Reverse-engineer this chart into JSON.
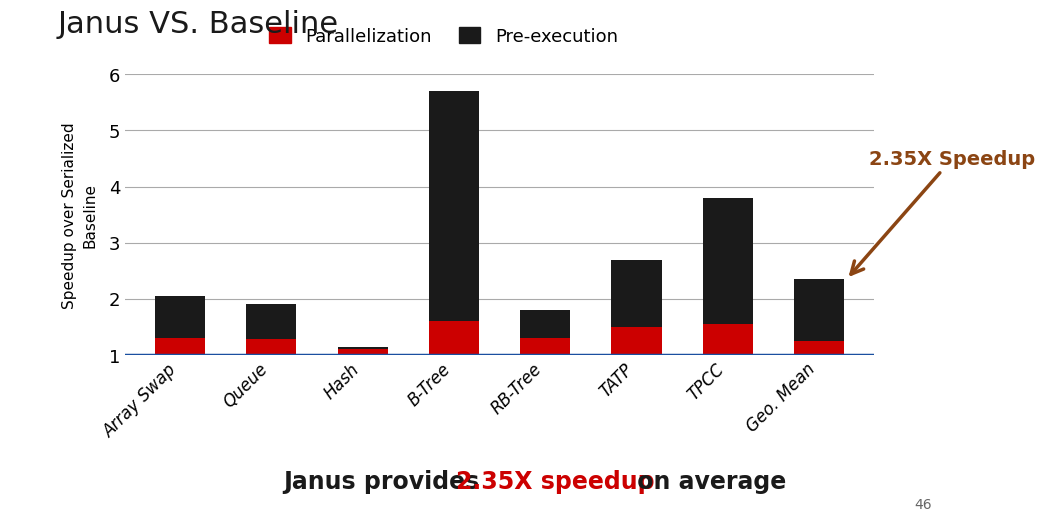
{
  "categories": [
    "Array Swap",
    "Queue",
    "Hash",
    "B-Tree",
    "RB-Tree",
    "TATP",
    "TPCC",
    "Geo. Mean"
  ],
  "baseline": 1.0,
  "parallelization_tops": [
    1.3,
    1.28,
    1.1,
    1.6,
    1.3,
    1.5,
    1.55,
    1.25
  ],
  "total_tops": [
    2.05,
    1.9,
    1.15,
    5.7,
    1.8,
    2.7,
    3.8,
    2.35
  ],
  "red_color": "#CC0000",
  "black_color": "#1a1a1a",
  "baseline_color": "#1a4fa0",
  "title": "Janus VS. Baseline",
  "ylabel": "Speedup over Serialized\nBaseline",
  "ylim": [
    1,
    6
  ],
  "yticks": [
    1,
    2,
    3,
    4,
    5,
    6
  ],
  "legend_parallelization": "Parallelization",
  "legend_preexecution": "Pre-execution",
  "annotation_text": "2.35X Speedup",
  "annotation_color": "#8B4513",
  "footer_text1": "Janus provides ",
  "footer_text2": "2.35X speedup",
  "footer_text3": " on average",
  "footer_color_normal": "#1a1a1a",
  "footer_color_highlight": "#CC0000",
  "slide_number": "46",
  "bg_color": "#ffffff",
  "footer_bg_color": "#c8c8c8",
  "bar_width": 0.55
}
